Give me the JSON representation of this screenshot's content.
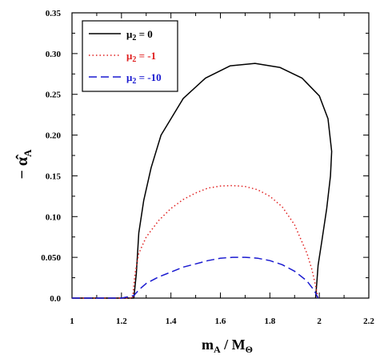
{
  "chart_data": {
    "type": "line",
    "xlabel": {
      "main": "m",
      "sub": "A",
      "sep": " / M",
      "sub2": "Θ"
    },
    "ylabel": {
      "prefix": "− ",
      "main": "α̂",
      "sub": "A"
    },
    "xlim": [
      1,
      2.2
    ],
    "ylim": [
      0,
      0.35
    ],
    "xticks": [
      1,
      1.2,
      1.4,
      1.6,
      1.8,
      2,
      2.2
    ],
    "xtick_labels": [
      "1",
      "1.2",
      "1.4",
      "1.6",
      "1.8",
      "2",
      "2.2"
    ],
    "yticks": [
      0,
      0.05,
      0.1,
      0.15,
      0.2,
      0.25,
      0.3,
      0.35
    ],
    "ytick_labels": [
      "0.0",
      "0.050",
      "0.10",
      "0.15",
      "0.20",
      "0.25",
      "0.30",
      "0.35"
    ],
    "grid": false,
    "legend_position": "top-left",
    "series": [
      {
        "name": "μ₂ = 0",
        "label_main": "μ",
        "label_sub": "2",
        "label_rest": " = 0",
        "color": "#000000",
        "style": "solid",
        "x": [
          1.0,
          1.1,
          1.2,
          1.25,
          1.26,
          1.27,
          1.29,
          1.32,
          1.36,
          1.45,
          1.54,
          1.64,
          1.74,
          1.84,
          1.93,
          2.0,
          2.035,
          2.05,
          2.045,
          2.03,
          2.01,
          1.995,
          1.99,
          1.985
        ],
        "y": [
          0.0,
          0.0,
          0.0,
          0.0,
          0.03,
          0.08,
          0.12,
          0.16,
          0.2,
          0.245,
          0.27,
          0.285,
          0.288,
          0.283,
          0.27,
          0.248,
          0.22,
          0.18,
          0.15,
          0.11,
          0.07,
          0.04,
          0.02,
          0.0
        ]
      },
      {
        "name": "μ₂ = -1",
        "label_main": "μ",
        "label_sub": "2",
        "label_rest": " = -1",
        "color": "#e02020",
        "style": "dotted",
        "x": [
          1.0,
          1.1,
          1.2,
          1.245,
          1.255,
          1.27,
          1.3,
          1.35,
          1.4,
          1.45,
          1.5,
          1.55,
          1.6,
          1.65,
          1.7,
          1.75,
          1.8,
          1.85,
          1.9,
          1.95,
          1.97,
          1.985,
          1.995
        ],
        "y": [
          0.0,
          0.0,
          0.0,
          0.0,
          0.03,
          0.055,
          0.075,
          0.095,
          0.11,
          0.121,
          0.129,
          0.135,
          0.1375,
          0.138,
          0.137,
          0.133,
          0.125,
          0.112,
          0.09,
          0.055,
          0.035,
          0.015,
          0.0
        ]
      },
      {
        "name": "μ₂ = -10",
        "label_main": "μ",
        "label_sub": "2",
        "label_rest": " = -10",
        "color": "#1a1ad0",
        "style": "dashed",
        "x": [
          1.0,
          1.1,
          1.2,
          1.25,
          1.27,
          1.3,
          1.35,
          1.4,
          1.45,
          1.5,
          1.55,
          1.6,
          1.65,
          1.7,
          1.75,
          1.8,
          1.85,
          1.9,
          1.95,
          1.98,
          1.995
        ],
        "y": [
          0.0,
          0.0,
          0.0,
          0.003,
          0.01,
          0.018,
          0.026,
          0.032,
          0.038,
          0.042,
          0.046,
          0.049,
          0.05,
          0.05,
          0.049,
          0.046,
          0.041,
          0.033,
          0.021,
          0.009,
          0.0
        ]
      }
    ]
  }
}
